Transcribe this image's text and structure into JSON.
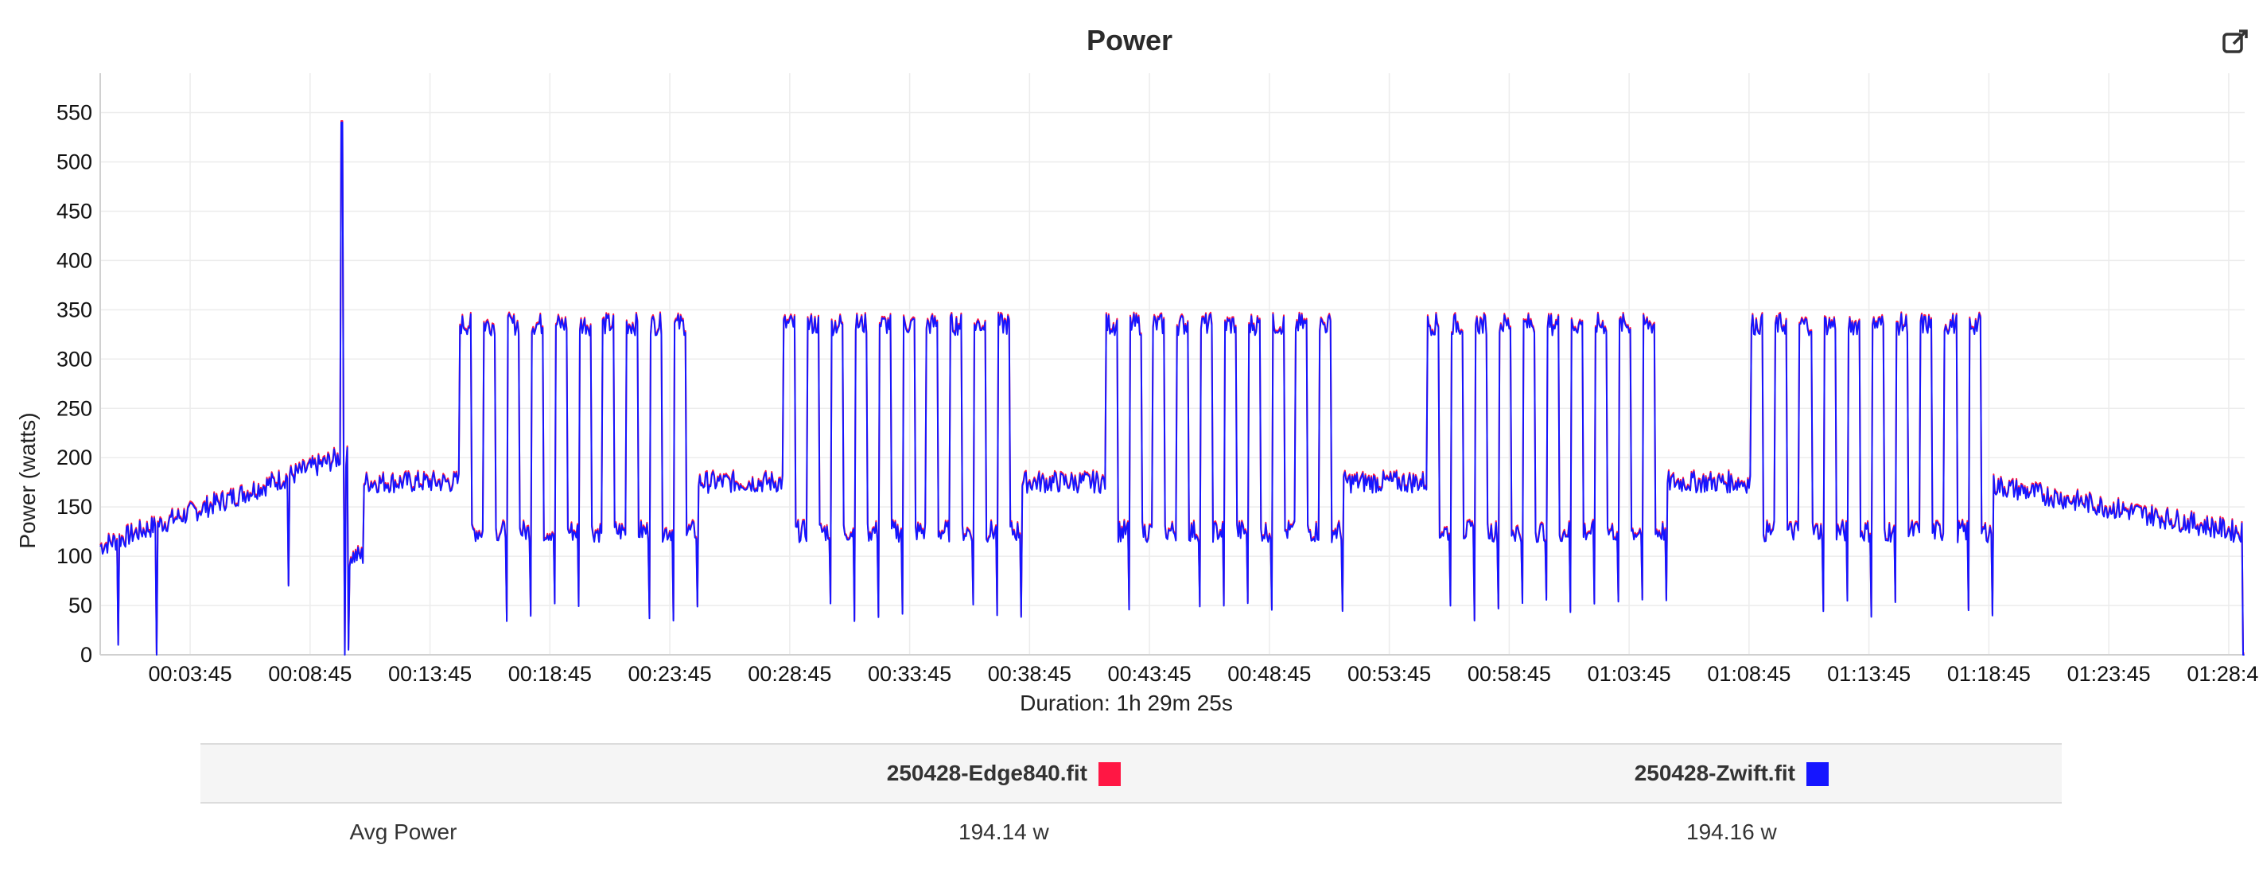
{
  "chart_data": {
    "type": "line",
    "title": "Power",
    "ylabel": "Power (watts)",
    "xlabel": "Duration: 1h 29m 25s",
    "ylim": [
      0,
      590
    ],
    "xlim_seconds": [
      0,
      5365
    ],
    "y_ticks": [
      "0",
      "50",
      "100",
      "150",
      "200",
      "250",
      "300",
      "350",
      "400",
      "450",
      "500",
      "550"
    ],
    "y_tick_values": [
      0,
      50,
      100,
      150,
      200,
      250,
      300,
      350,
      400,
      450,
      500,
      550
    ],
    "x_ticks": [
      "00:03:45",
      "00:08:45",
      "00:13:45",
      "00:18:45",
      "00:23:45",
      "00:28:45",
      "00:33:45",
      "00:38:45",
      "00:43:45",
      "00:48:45",
      "00:53:45",
      "00:58:45",
      "01:03:45",
      "01:08:45",
      "01:13:45",
      "01:18:45",
      "01:23:45",
      "01:28:45"
    ],
    "x_tick_seconds": [
      225,
      525,
      825,
      1125,
      1425,
      1725,
      2025,
      2325,
      2625,
      2925,
      3225,
      3525,
      3825,
      4125,
      4425,
      4725,
      5025,
      5325
    ],
    "grid": true,
    "series": [
      {
        "name": "250428-Edge840.fit",
        "color": "#ff1744"
      },
      {
        "name": "250428-Zwift.fit",
        "color": "#1515ff"
      }
    ],
    "profile": {
      "warmup": {
        "start_s": 0,
        "end_s": 600,
        "from_w": 110,
        "to_w": 200,
        "spike_s": 605,
        "spike_w": 540
      },
      "recover_after_spike": {
        "start_s": 620,
        "end_s": 660,
        "level_w": 100
      },
      "steady_blocks": [
        {
          "start_s": 660,
          "end_s": 900,
          "w": 175
        },
        {
          "start_s": 1495,
          "end_s": 1710,
          "w": 175
        },
        {
          "start_s": 2305,
          "end_s": 2515,
          "w": 175
        },
        {
          "start_s": 3110,
          "end_s": 3320,
          "w": 175
        },
        {
          "start_s": 3920,
          "end_s": 4130,
          "w": 175
        }
      ],
      "interval_sets": [
        {
          "start_s": 900,
          "end_s": 1495
        },
        {
          "start_s": 1710,
          "end_s": 2305
        },
        {
          "start_s": 2515,
          "end_s": 3110
        },
        {
          "start_s": 3320,
          "end_s": 3920
        },
        {
          "start_s": 4130,
          "end_s": 4735
        }
      ],
      "interval_on_w": 335,
      "interval_off_w": 125,
      "interval_dip_w": 45,
      "reps_per_set": 10,
      "cooldown": {
        "start_s": 4735,
        "end_s": 5340,
        "from_w": 172,
        "to_w": 125
      },
      "end_drop_s": 5360
    }
  },
  "summary_table": {
    "columns": [
      "",
      "250428-Edge840.fit",
      "250428-Zwift.fit"
    ],
    "rows": [
      {
        "label": "Avg Power",
        "values": [
          "194.14 w",
          "194.16 w"
        ]
      }
    ]
  },
  "icons": {
    "export": "external-link-icon"
  }
}
